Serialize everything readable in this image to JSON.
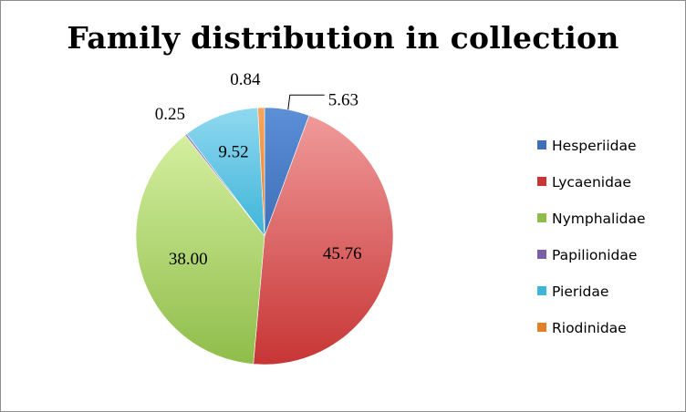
{
  "chart_data": {
    "type": "pie",
    "title": "Family distribution in collection",
    "legend_position": "right",
    "slices": [
      {
        "name": "Hesperiidae",
        "value": 5.63,
        "label": "5.63",
        "color": "#5b8fd6",
        "shade": "#3f6fb8"
      },
      {
        "name": "Lycaenidae",
        "value": 45.76,
        "label": "45.76",
        "color": "#f09a9a",
        "shade": "#c73535"
      },
      {
        "name": "Nymphalidae",
        "value": 38.0,
        "label": "38.00",
        "color": "#d4ef9f",
        "shade": "#8fbd4a"
      },
      {
        "name": "Papilionidae",
        "value": 0.25,
        "label": "0.25",
        "color": "#9b7fc4",
        "shade": "#7a5ea8"
      },
      {
        "name": "Pieridae",
        "value": 9.52,
        "label": "9.52",
        "color": "#8fd8f0",
        "shade": "#3fb5d8"
      },
      {
        "name": "Riodinidae",
        "value": 0.84,
        "label": "0.84",
        "color": "#f7a65a",
        "shade": "#e0812a"
      }
    ]
  }
}
